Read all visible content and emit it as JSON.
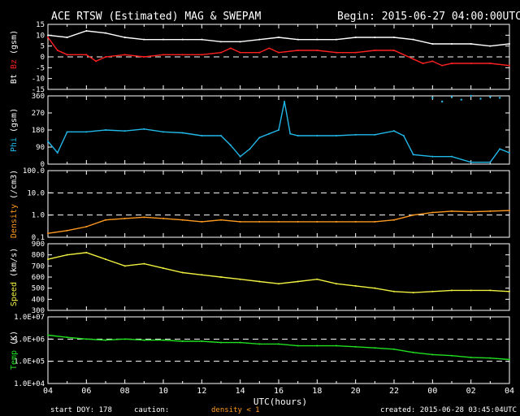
{
  "header": {
    "title": "ACE RTSW (Estimated) MAG & SWEPAM",
    "begin": "Begin: 2015-06-27 04:00:00UTC"
  },
  "footer": {
    "start_doy": "start DOY: 178",
    "caution": "caution:",
    "density_note": "density < 1",
    "created": "created: 2015-06-28 03:45:04UTC"
  },
  "colors": {
    "bt": "#ffffff",
    "bz": "#ff2020",
    "phi": "#22b8e8",
    "density": "#ff9a20",
    "speed": "#f0f040",
    "temp": "#20e020",
    "axes": "#ffffff",
    "dash": "#ffffff"
  },
  "chart_data": {
    "type": "multi-panel timeseries",
    "x_axis": {
      "label": "UTC(hours)",
      "ticks": [
        "04",
        "06",
        "08",
        "10",
        "12",
        "14",
        "16",
        "18",
        "20",
        "22",
        "00",
        "02",
        "04"
      ],
      "range_hours": [
        0,
        24
      ]
    },
    "panels": [
      {
        "id": "mag",
        "ylabel_parts": [
          {
            "text": "Bt",
            "color": "#ffffff"
          },
          {
            "text": " ",
            "color": "#ffffff"
          },
          {
            "text": "Bz",
            "color": "#ff2020"
          },
          {
            "text": " (gsm)",
            "color": "#ffffff"
          }
        ],
        "ylim": [
          -15,
          15
        ],
        "ticks": [
          "15",
          "10",
          "5",
          "0",
          "-5",
          "-10",
          "-15"
        ],
        "tick_values": [
          15,
          10,
          5,
          0,
          -5,
          -10,
          -15
        ],
        "dashed_at": [
          0
        ],
        "series": [
          {
            "name": "Bt",
            "color": "#ffffff",
            "style": "line",
            "points": [
              [
                0,
                10
              ],
              [
                1,
                9
              ],
              [
                2,
                12
              ],
              [
                3,
                11
              ],
              [
                4,
                9
              ],
              [
                5,
                8
              ],
              [
                6,
                8
              ],
              [
                7,
                8
              ],
              [
                8,
                8
              ],
              [
                9,
                7
              ],
              [
                10,
                7
              ],
              [
                11,
                8
              ],
              [
                12,
                9
              ],
              [
                13,
                8
              ],
              [
                14,
                8
              ],
              [
                15,
                8
              ],
              [
                16,
                9
              ],
              [
                17,
                9
              ],
              [
                18,
                9
              ],
              [
                19,
                8
              ],
              [
                20,
                6
              ],
              [
                21,
                6
              ],
              [
                22,
                6
              ],
              [
                23,
                5
              ],
              [
                24,
                6
              ]
            ]
          },
          {
            "name": "Bz",
            "color": "#ff2020",
            "style": "line",
            "points": [
              [
                0,
                9
              ],
              [
                0.5,
                3
              ],
              [
                1,
                1
              ],
              [
                2,
                1
              ],
              [
                2.5,
                -2
              ],
              [
                3,
                0
              ],
              [
                4,
                1
              ],
              [
                5,
                0
              ],
              [
                6,
                1
              ],
              [
                7,
                1
              ],
              [
                8,
                1
              ],
              [
                9,
                2
              ],
              [
                9.5,
                4
              ],
              [
                10,
                2
              ],
              [
                11,
                2
              ],
              [
                11.5,
                4
              ],
              [
                12,
                2
              ],
              [
                13,
                3
              ],
              [
                14,
                3
              ],
              [
                15,
                2
              ],
              [
                16,
                2
              ],
              [
                17,
                3
              ],
              [
                18,
                3
              ],
              [
                19,
                -1
              ],
              [
                19.5,
                -3
              ],
              [
                20,
                -2
              ],
              [
                20.5,
                -4
              ],
              [
                21,
                -3
              ],
              [
                22,
                -3
              ],
              [
                23,
                -3
              ],
              [
                24,
                -4
              ]
            ]
          }
        ]
      },
      {
        "id": "phi",
        "ylabel_parts": [
          {
            "text": "Phi",
            "color": "#22b8e8"
          },
          {
            "text": " (gsm)",
            "color": "#ffffff"
          }
        ],
        "ylim": [
          0,
          360
        ],
        "ticks": [
          "360",
          "270",
          "180",
          "90",
          "0"
        ],
        "tick_values": [
          360,
          270,
          180,
          90,
          0
        ],
        "dashed_at": [],
        "series": [
          {
            "name": "Phi",
            "color": "#22b8e8",
            "style": "line",
            "points": [
              [
                0,
                120
              ],
              [
                0.5,
                60
              ],
              [
                1,
                170
              ],
              [
                2,
                170
              ],
              [
                3,
                180
              ],
              [
                4,
                175
              ],
              [
                5,
                185
              ],
              [
                6,
                170
              ],
              [
                7,
                165
              ],
              [
                8,
                150
              ],
              [
                9,
                150
              ],
              [
                9.5,
                100
              ],
              [
                10,
                40
              ],
              [
                10.5,
                80
              ],
              [
                11,
                140
              ],
              [
                11.5,
                160
              ],
              [
                12,
                180
              ],
              [
                12.3,
                330
              ],
              [
                12.6,
                160
              ],
              [
                13,
                150
              ],
              [
                14,
                150
              ],
              [
                15,
                150
              ],
              [
                16,
                155
              ],
              [
                17,
                155
              ],
              [
                18,
                175
              ],
              [
                18.5,
                150
              ],
              [
                19,
                50
              ],
              [
                20,
                40
              ],
              [
                21,
                40
              ],
              [
                22,
                10
              ],
              [
                23,
                10
              ],
              [
                23.5,
                80
              ],
              [
                24,
                60
              ]
            ]
          },
          {
            "name": "Phi-high",
            "color": "#22b8e8",
            "style": "dots",
            "points": [
              [
                20,
                350
              ],
              [
                20.5,
                330
              ],
              [
                21,
                355
              ],
              [
                21.5,
                340
              ],
              [
                22,
                360
              ],
              [
                22.5,
                345
              ],
              [
                23,
                355
              ],
              [
                23.5,
                350
              ]
            ]
          }
        ]
      },
      {
        "id": "density",
        "ylabel_parts": [
          {
            "text": "Density",
            "color": "#ff9a20"
          },
          {
            "text": " (/cm3)",
            "color": "#ffffff"
          }
        ],
        "log": true,
        "ylim": [
          0.1,
          100
        ],
        "ticks": [
          "100.0",
          "10.0",
          "1.0",
          "0.1"
        ],
        "tick_values": [
          100,
          10,
          1,
          0.1
        ],
        "dashed_at": [
          10,
          1
        ],
        "series": [
          {
            "name": "Density",
            "color": "#ff9a20",
            "style": "line",
            "points": [
              [
                0,
                0.15
              ],
              [
                1,
                0.2
              ],
              [
                2,
                0.3
              ],
              [
                3,
                0.6
              ],
              [
                4,
                0.7
              ],
              [
                5,
                0.8
              ],
              [
                6,
                0.7
              ],
              [
                7,
                0.6
              ],
              [
                8,
                0.5
              ],
              [
                9,
                0.6
              ],
              [
                10,
                0.5
              ],
              [
                11,
                0.5
              ],
              [
                12,
                0.5
              ],
              [
                13,
                0.5
              ],
              [
                14,
                0.5
              ],
              [
                15,
                0.5
              ],
              [
                16,
                0.5
              ],
              [
                17,
                0.5
              ],
              [
                18,
                0.6
              ],
              [
                19,
                1.0
              ],
              [
                20,
                1.3
              ],
              [
                21,
                1.5
              ],
              [
                22,
                1.4
              ],
              [
                23,
                1.5
              ],
              [
                24,
                1.6
              ]
            ]
          }
        ]
      },
      {
        "id": "speed",
        "ylabel_parts": [
          {
            "text": "Speed",
            "color": "#f0f040"
          },
          {
            "text": " (km/s)",
            "color": "#ffffff"
          }
        ],
        "ylim": [
          300,
          900
        ],
        "ticks": [
          "900",
          "800",
          "700",
          "600",
          "500",
          "400",
          "300"
        ],
        "tick_values": [
          900,
          800,
          700,
          600,
          500,
          400,
          300
        ],
        "dashed_at": [],
        "series": [
          {
            "name": "Speed",
            "color": "#f0f040",
            "style": "line",
            "points": [
              [
                0,
                760
              ],
              [
                1,
                800
              ],
              [
                2,
                820
              ],
              [
                3,
                760
              ],
              [
                4,
                700
              ],
              [
                5,
                720
              ],
              [
                6,
                680
              ],
              [
                7,
                640
              ],
              [
                8,
                620
              ],
              [
                9,
                600
              ],
              [
                10,
                580
              ],
              [
                11,
                560
              ],
              [
                12,
                540
              ],
              [
                13,
                560
              ],
              [
                14,
                580
              ],
              [
                15,
                540
              ],
              [
                16,
                520
              ],
              [
                17,
                500
              ],
              [
                18,
                470
              ],
              [
                19,
                460
              ],
              [
                20,
                470
              ],
              [
                21,
                480
              ],
              [
                22,
                480
              ],
              [
                23,
                480
              ],
              [
                24,
                470
              ]
            ]
          }
        ]
      },
      {
        "id": "temp",
        "ylabel_parts": [
          {
            "text": "Temp",
            "color": "#20e020"
          },
          {
            "text": " (K)",
            "color": "#ffffff"
          }
        ],
        "log": true,
        "ylim": [
          10000,
          10000000
        ],
        "ticks": [
          "1.0E+07",
          "1.0E+06",
          "1.0E+05",
          "1.0E+04"
        ],
        "tick_values": [
          10000000,
          1000000,
          100000,
          10000
        ],
        "dashed_at": [
          1000000,
          100000
        ],
        "series": [
          {
            "name": "Temp",
            "color": "#20e020",
            "style": "line",
            "points": [
              [
                0,
                1500000
              ],
              [
                1,
                1200000
              ],
              [
                2,
                1000000
              ],
              [
                3,
                900000
              ],
              [
                4,
                1000000
              ],
              [
                5,
                900000
              ],
              [
                6,
                900000
              ],
              [
                7,
                800000
              ],
              [
                8,
                800000
              ],
              [
                9,
                700000
              ],
              [
                10,
                700000
              ],
              [
                11,
                600000
              ],
              [
                12,
                600000
              ],
              [
                13,
                500000
              ],
              [
                14,
                500000
              ],
              [
                15,
                500000
              ],
              [
                16,
                450000
              ],
              [
                17,
                400000
              ],
              [
                18,
                350000
              ],
              [
                19,
                250000
              ],
              [
                20,
                200000
              ],
              [
                21,
                180000
              ],
              [
                22,
                150000
              ],
              [
                23,
                140000
              ],
              [
                24,
                120000
              ]
            ]
          }
        ]
      }
    ]
  }
}
